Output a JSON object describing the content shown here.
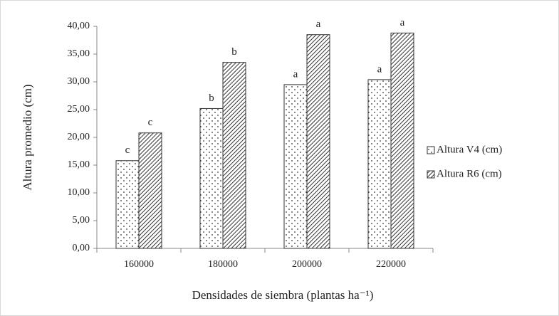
{
  "chart_data": {
    "type": "bar",
    "x_label": "Densidades de siembra (plantas ha⁻¹)",
    "y_label": "Altura promedio (cm)",
    "categories": [
      "160000",
      "180000",
      "200000",
      "220000"
    ],
    "series": [
      {
        "name": "Altura V4 (cm)",
        "color": "#333333",
        "pattern": "dots",
        "values": [
          15.8,
          25.2,
          29.5,
          30.4
        ],
        "letters": [
          "c",
          "b",
          "a",
          "a"
        ]
      },
      {
        "name": "Altura R6 (cm)",
        "color": "#333333",
        "pattern": "hatch",
        "values": [
          20.8,
          33.5,
          38.5,
          38.8
        ],
        "letters": [
          "c",
          "b",
          "a",
          "a"
        ]
      }
    ],
    "ylim": [
      0,
      40
    ],
    "yticks": [
      {
        "value": 0,
        "label": "0,00"
      },
      {
        "value": 5,
        "label": "5,00"
      },
      {
        "value": 10,
        "label": "10,00"
      },
      {
        "value": 15,
        "label": "15,00"
      },
      {
        "value": 20,
        "label": "20,00"
      },
      {
        "value": 25,
        "label": "25,00"
      },
      {
        "value": 30,
        "label": "30,00"
      },
      {
        "value": 35,
        "label": "35,00"
      },
      {
        "value": 40,
        "label": "40,00"
      }
    ],
    "grid": false,
    "legend": "right"
  }
}
